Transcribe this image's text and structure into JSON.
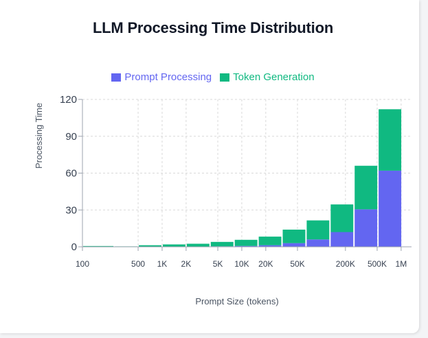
{
  "title": "LLM Processing Time Distribution",
  "colors": {
    "prompt": "#6366f1",
    "token": "#10b981",
    "grid": "#d9d9d9",
    "axis": "#9ca3af"
  },
  "chart_data": {
    "type": "bar",
    "stacked": true,
    "x_scale": "log",
    "title": "LLM Processing Time Distribution",
    "xlabel": "Prompt Size (tokens)",
    "ylabel": "Processing Time",
    "ylim": [
      0,
      120
    ],
    "xlim": [
      100,
      1350000
    ],
    "y_ticks": [
      {
        "value": 0,
        "label": "0"
      },
      {
        "value": 30,
        "label": "30"
      },
      {
        "value": 60,
        "label": "60"
      },
      {
        "value": 90,
        "label": "90"
      },
      {
        "value": 120,
        "label": "120"
      }
    ],
    "x_ticks": [
      {
        "value": 100,
        "label": "100"
      },
      {
        "value": 500,
        "label": "500"
      },
      {
        "value": 1000,
        "label": "1K"
      },
      {
        "value": 2000,
        "label": "2K"
      },
      {
        "value": 5000,
        "label": "5K"
      },
      {
        "value": 10000,
        "label": "10K"
      },
      {
        "value": 20000,
        "label": "20K"
      },
      {
        "value": 50000,
        "label": "50K"
      },
      {
        "value": 200000,
        "label": "200K"
      },
      {
        "value": 500000,
        "label": "500K"
      },
      {
        "value": 1000000,
        "label": "1M"
      }
    ],
    "legend_position": "top-center",
    "grid": true,
    "series": [
      {
        "name": "Prompt Processing",
        "color": "#6366f1"
      },
      {
        "name": "Token Generation",
        "color": "#10b981"
      }
    ],
    "bins": [
      {
        "start": 100,
        "end": 250,
        "prompt": 0.05,
        "token": 0.6
      },
      {
        "start": 250,
        "end": 500,
        "prompt": 0.05,
        "token": 0.3
      },
      {
        "start": 500,
        "end": 1000,
        "prompt": 0.1,
        "token": 1.2
      },
      {
        "start": 1000,
        "end": 2000,
        "prompt": 0.15,
        "token": 1.8
      },
      {
        "start": 2000,
        "end": 4000,
        "prompt": 0.2,
        "token": 2.3
      },
      {
        "start": 4000,
        "end": 8000,
        "prompt": 0.4,
        "token": 3.6
      },
      {
        "start": 8000,
        "end": 16000,
        "prompt": 0.7,
        "token": 5.0
      },
      {
        "start": 16000,
        "end": 32000,
        "prompt": 1.3,
        "token": 7.0
      },
      {
        "start": 32000,
        "end": 64000,
        "prompt": 3.0,
        "token": 11.0
      },
      {
        "start": 64000,
        "end": 128000,
        "prompt": 6.0,
        "token": 15.5
      },
      {
        "start": 128000,
        "end": 256000,
        "prompt": 12.0,
        "token": 22.5
      },
      {
        "start": 256000,
        "end": 512000,
        "prompt": 30.5,
        "token": 35.5
      },
      {
        "start": 512000,
        "end": 1024000,
        "prompt": 62.0,
        "token": 50.0
      }
    ]
  }
}
